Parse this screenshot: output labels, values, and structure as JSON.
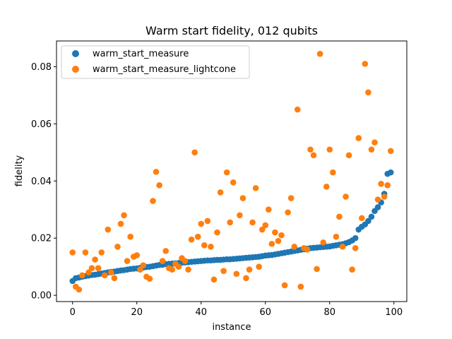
{
  "chart_data": {
    "type": "scatter",
    "title": "Warm start fidelity, 012 qubits",
    "xlabel": "instance",
    "ylabel": "fidelity",
    "xlim": [
      -5,
      104
    ],
    "ylim": [
      -0.0022,
      0.089
    ],
    "xticks": [
      0,
      20,
      40,
      60,
      80,
      100
    ],
    "yticks": [
      0.0,
      0.02,
      0.04,
      0.06,
      0.08
    ],
    "ytick_labels": [
      "0.00",
      "0.02",
      "0.04",
      "0.06",
      "0.08"
    ],
    "grid": false,
    "legend_position": "upper-left",
    "series": [
      {
        "name": "warm_start_measure",
        "color": "#1f77b4",
        "x": [
          0,
          1,
          2,
          3,
          4,
          5,
          6,
          7,
          8,
          9,
          10,
          11,
          12,
          13,
          14,
          15,
          16,
          17,
          18,
          19,
          20,
          21,
          22,
          23,
          24,
          25,
          26,
          27,
          28,
          29,
          30,
          31,
          32,
          33,
          34,
          35,
          36,
          37,
          38,
          39,
          40,
          41,
          42,
          43,
          44,
          45,
          46,
          47,
          48,
          49,
          50,
          51,
          52,
          53,
          54,
          55,
          56,
          57,
          58,
          59,
          60,
          61,
          62,
          63,
          64,
          65,
          66,
          67,
          68,
          69,
          70,
          71,
          72,
          73,
          74,
          75,
          76,
          77,
          78,
          79,
          80,
          81,
          82,
          83,
          84,
          85,
          86,
          87,
          88,
          89,
          90,
          91,
          92,
          93,
          94,
          95,
          96,
          97,
          98,
          99
        ],
        "y": [
          0.005,
          0.006,
          0.0062,
          0.0065,
          0.0067,
          0.0069,
          0.0071,
          0.0072,
          0.0074,
          0.0076,
          0.0078,
          0.008,
          0.0082,
          0.0083,
          0.0085,
          0.0087,
          0.0088,
          0.009,
          0.0092,
          0.0093,
          0.0094,
          0.0096,
          0.0097,
          0.0099,
          0.01,
          0.0102,
          0.0104,
          0.0106,
          0.0107,
          0.0109,
          0.011,
          0.0111,
          0.0112,
          0.0113,
          0.0114,
          0.0115,
          0.0116,
          0.0117,
          0.0118,
          0.0119,
          0.012,
          0.0121,
          0.0122,
          0.0122,
          0.0123,
          0.0124,
          0.0124,
          0.0125,
          0.0126,
          0.0126,
          0.0127,
          0.0128,
          0.0129,
          0.013,
          0.0131,
          0.0132,
          0.0133,
          0.0134,
          0.0135,
          0.0137,
          0.0139,
          0.014,
          0.0141,
          0.0143,
          0.0145,
          0.0147,
          0.0149,
          0.0151,
          0.0153,
          0.0155,
          0.0157,
          0.0159,
          0.0161,
          0.0163,
          0.0165,
          0.0166,
          0.0167,
          0.0168,
          0.0169,
          0.017,
          0.0171,
          0.0173,
          0.0175,
          0.0177,
          0.0179,
          0.0182,
          0.0186,
          0.0192,
          0.02,
          0.023,
          0.024,
          0.0248,
          0.026,
          0.0275,
          0.0295,
          0.0308,
          0.0325,
          0.0355,
          0.0425,
          0.043
        ]
      },
      {
        "name": "warm_start_measure_lightcone",
        "color": "#ff7f0e",
        "x": [
          0,
          1,
          2,
          3,
          4,
          5,
          6,
          7,
          8,
          9,
          10,
          11,
          12,
          13,
          14,
          15,
          16,
          17,
          18,
          19,
          20,
          21,
          22,
          23,
          24,
          25,
          26,
          27,
          28,
          29,
          30,
          31,
          32,
          33,
          34,
          35,
          36,
          37,
          38,
          39,
          40,
          41,
          42,
          43,
          44,
          45,
          46,
          47,
          48,
          49,
          50,
          51,
          52,
          53,
          54,
          55,
          56,
          57,
          58,
          59,
          60,
          61,
          62,
          63,
          64,
          65,
          66,
          67,
          68,
          69,
          70,
          71,
          72,
          73,
          74,
          75,
          76,
          77,
          78,
          79,
          80,
          81,
          82,
          83,
          84,
          85,
          86,
          87,
          88,
          89,
          90,
          91,
          92,
          93,
          94,
          95,
          96,
          97,
          98,
          99
        ],
        "y": [
          0.015,
          0.003,
          0.002,
          0.007,
          0.015,
          0.008,
          0.0095,
          0.0125,
          0.0095,
          0.015,
          0.007,
          0.023,
          0.008,
          0.006,
          0.017,
          0.025,
          0.028,
          0.012,
          0.0205,
          0.0135,
          0.014,
          0.009,
          0.0105,
          0.0065,
          0.0058,
          0.033,
          0.0432,
          0.0385,
          0.012,
          0.0155,
          0.0095,
          0.009,
          0.011,
          0.01,
          0.013,
          0.012,
          0.009,
          0.0195,
          0.05,
          0.0205,
          0.025,
          0.0175,
          0.026,
          0.017,
          0.0055,
          0.022,
          0.036,
          0.0085,
          0.043,
          0.0255,
          0.0395,
          0.0075,
          0.028,
          0.034,
          0.006,
          0.009,
          0.0255,
          0.0375,
          0.01,
          0.023,
          0.0245,
          0.03,
          0.018,
          0.022,
          0.019,
          0.021,
          0.0035,
          0.029,
          0.034,
          0.017,
          0.065,
          0.003,
          0.0165,
          0.016,
          0.051,
          0.049,
          0.0092,
          0.0845,
          0.0185,
          0.038,
          0.051,
          0.043,
          0.0205,
          0.0275,
          0.017,
          0.0345,
          0.049,
          0.009,
          0.0165,
          0.055,
          0.027,
          0.081,
          0.071,
          0.051,
          0.0535,
          0.0335,
          0.039,
          0.0345,
          0.0385,
          0.0505
        ]
      }
    ]
  }
}
